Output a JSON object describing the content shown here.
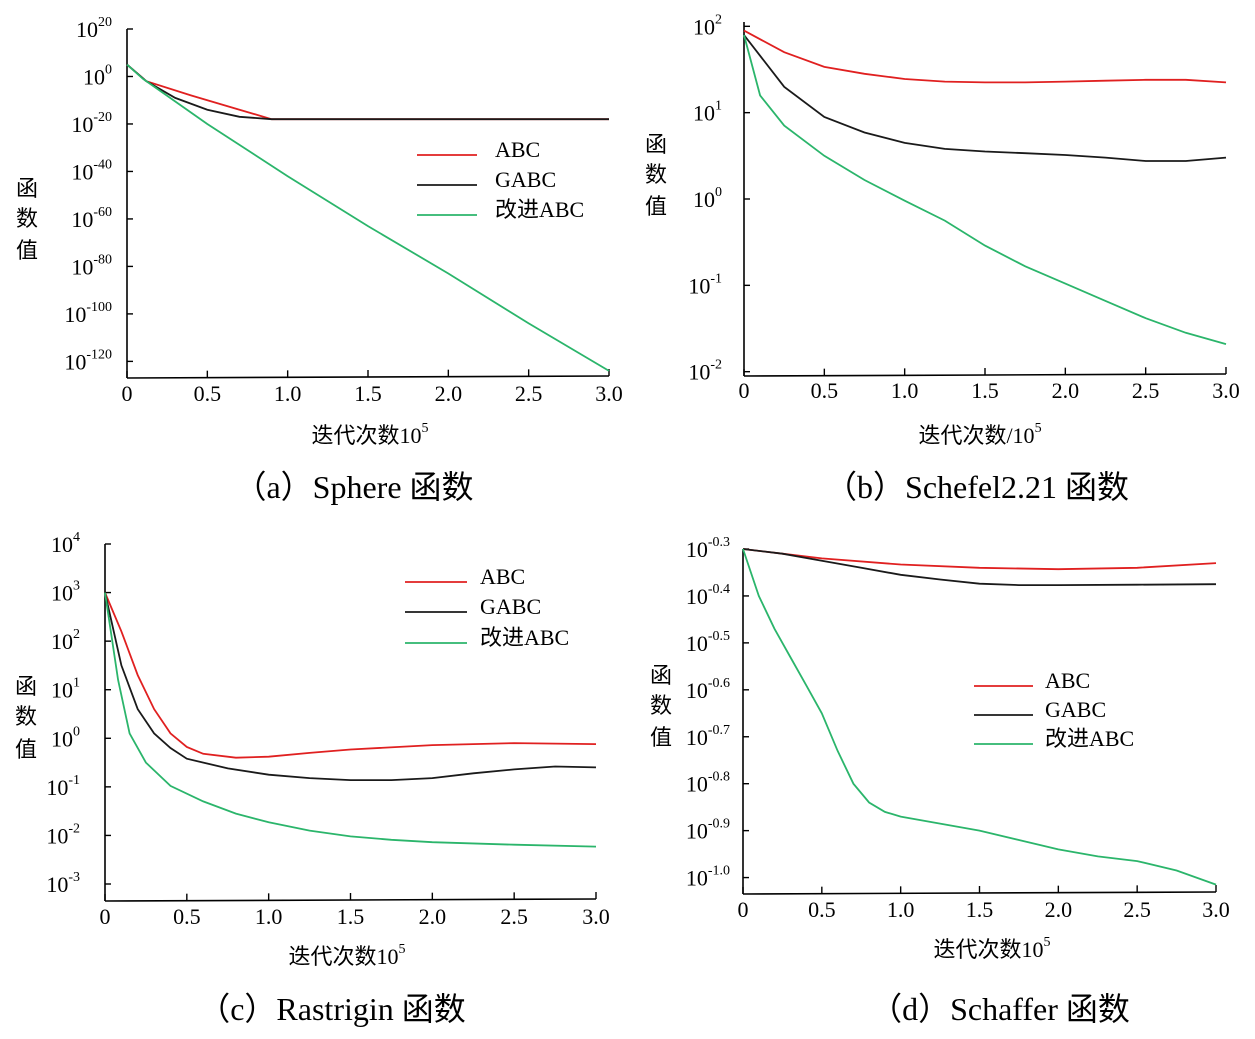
{
  "colors": {
    "ABC": "#e02020",
    "GABC": "#1a1a1a",
    "improved_ABC": "#2bb56b"
  },
  "chart_data": [
    {
      "type": "line",
      "caption": "（a）Sphere 函数",
      "xlabel": "迭代次数10",
      "xlabel_sup": "5",
      "ylabel": "函数值",
      "y_scale": "log",
      "x_ticks": [
        0,
        0.5,
        1.0,
        1.5,
        2.0,
        2.5,
        3.0
      ],
      "x_tick_labels": [
        "0",
        "0.5",
        "1.0",
        "1.5",
        "2.0",
        "2.5",
        "3.0"
      ],
      "y_ticks": [
        20,
        0,
        -20,
        -40,
        -60,
        -80,
        -100,
        -120
      ],
      "y_tick_labels": [
        {
          "base": "10",
          "exp": "20"
        },
        {
          "base": "10",
          "exp": "0"
        },
        {
          "base": "10",
          "exp": "-20"
        },
        {
          "base": "10",
          "exp": "-40"
        },
        {
          "base": "10",
          "exp": "-60"
        },
        {
          "base": "10",
          "exp": "-80"
        },
        {
          "base": "10",
          "exp": "-100"
        },
        {
          "base": "10",
          "exp": "-120"
        }
      ],
      "xlim": [
        0,
        3.0
      ],
      "ylim_log10": [
        -127,
        20
      ],
      "legend_position": "center-right",
      "series": [
        {
          "name": "ABC",
          "color_key": "ABC",
          "points": [
            [
              0,
              5
            ],
            [
              0.12,
              -2
            ],
            [
              0.4,
              -8
            ],
            [
              0.7,
              -14
            ],
            [
              0.9,
              -18
            ],
            [
              1.4,
              -18
            ],
            [
              2.0,
              -18
            ],
            [
              2.5,
              -18
            ],
            [
              3.0,
              -18
            ]
          ]
        },
        {
          "name": "GABC",
          "color_key": "GABC",
          "points": [
            [
              0,
              5
            ],
            [
              0.12,
              -2
            ],
            [
              0.3,
              -9
            ],
            [
              0.5,
              -14
            ],
            [
              0.7,
              -17
            ],
            [
              0.9,
              -18
            ],
            [
              1.4,
              -18
            ],
            [
              2.0,
              -18
            ],
            [
              2.5,
              -18
            ],
            [
              3.0,
              -18
            ]
          ]
        },
        {
          "name": "改进ABC",
          "color_key": "improved_ABC",
          "points": [
            [
              0,
              5
            ],
            [
              0.1,
              -1
            ],
            [
              0.5,
              -20
            ],
            [
              1.0,
              -42
            ],
            [
              1.5,
              -63
            ],
            [
              2.0,
              -83
            ],
            [
              2.5,
              -104
            ],
            [
              3.0,
              -124
            ]
          ]
        }
      ]
    },
    {
      "type": "line",
      "caption": "（b）Schefel2.21 函数",
      "xlabel": "迭代次数/10",
      "xlabel_sup": "5",
      "ylabel": "函数值",
      "y_scale": "log",
      "x_ticks": [
        0,
        0.5,
        1.0,
        1.5,
        2.0,
        2.5,
        3.0
      ],
      "x_tick_labels": [
        "0",
        "0.5",
        "1.0",
        "1.5",
        "2.0",
        "2.5",
        "3.0"
      ],
      "y_ticks": [
        2,
        1,
        0,
        -1,
        -2
      ],
      "y_tick_labels": [
        {
          "base": "10",
          "exp": "2"
        },
        {
          "base": "10",
          "exp": "1"
        },
        {
          "base": "10",
          "exp": "0"
        },
        {
          "base": "10",
          "exp": "-1"
        },
        {
          "base": "10",
          "exp": "-2"
        }
      ],
      "xlim": [
        0,
        3.0
      ],
      "ylim_log10": [
        -2.05,
        2.05
      ],
      "series": [
        {
          "name": "ABC",
          "color_key": "ABC",
          "points": [
            [
              0,
              1.95
            ],
            [
              0.25,
              1.7
            ],
            [
              0.5,
              1.53
            ],
            [
              0.75,
              1.45
            ],
            [
              1.0,
              1.39
            ],
            [
              1.25,
              1.36
            ],
            [
              1.5,
              1.35
            ],
            [
              1.75,
              1.35
            ],
            [
              2.0,
              1.36
            ],
            [
              2.25,
              1.37
            ],
            [
              2.5,
              1.38
            ],
            [
              2.75,
              1.38
            ],
            [
              3.0,
              1.35
            ]
          ]
        },
        {
          "name": "GABC",
          "color_key": "GABC",
          "points": [
            [
              0,
              1.9
            ],
            [
              0.25,
              1.3
            ],
            [
              0.5,
              0.95
            ],
            [
              0.75,
              0.77
            ],
            [
              1.0,
              0.65
            ],
            [
              1.25,
              0.58
            ],
            [
              1.5,
              0.55
            ],
            [
              1.75,
              0.53
            ],
            [
              2.0,
              0.51
            ],
            [
              2.25,
              0.48
            ],
            [
              2.5,
              0.44
            ],
            [
              2.75,
              0.44
            ],
            [
              3.0,
              0.48
            ]
          ]
        },
        {
          "name": "改进ABC",
          "color_key": "improved_ABC",
          "points": [
            [
              0,
              1.9
            ],
            [
              0.1,
              1.2
            ],
            [
              0.25,
              0.85
            ],
            [
              0.5,
              0.5
            ],
            [
              0.75,
              0.22
            ],
            [
              1.0,
              -0.02
            ],
            [
              1.25,
              -0.25
            ],
            [
              1.5,
              -0.54
            ],
            [
              1.75,
              -0.78
            ],
            [
              2.0,
              -0.98
            ],
            [
              2.25,
              -1.18
            ],
            [
              2.5,
              -1.38
            ],
            [
              2.75,
              -1.55
            ],
            [
              3.0,
              -1.68
            ]
          ]
        }
      ]
    },
    {
      "type": "line",
      "caption": "（c）Rastrigin 函数",
      "xlabel": "迭代次数10",
      "xlabel_sup": "5",
      "ylabel": "函数值",
      "y_scale": "log",
      "x_ticks": [
        0,
        0.5,
        1.0,
        1.5,
        2.0,
        2.5,
        3.0
      ],
      "x_tick_labels": [
        "0",
        "0.5",
        "1.0",
        "1.5",
        "2.0",
        "2.5",
        "3.0"
      ],
      "y_ticks": [
        4,
        3,
        2,
        1,
        0,
        -1,
        -2,
        -3
      ],
      "y_tick_labels": [
        {
          "base": "10",
          "exp": "4"
        },
        {
          "base": "10",
          "exp": "3"
        },
        {
          "base": "10",
          "exp": "2"
        },
        {
          "base": "10",
          "exp": "1"
        },
        {
          "base": "10",
          "exp": "0"
        },
        {
          "base": "10",
          "exp": "-1"
        },
        {
          "base": "10",
          "exp": "-2"
        },
        {
          "base": "10",
          "exp": "-3"
        }
      ],
      "xlim": [
        0,
        3.0
      ],
      "ylim_log10": [
        -3.35,
        4
      ],
      "legend_position": "top-right",
      "series": [
        {
          "name": "ABC",
          "color_key": "ABC",
          "points": [
            [
              0,
              3.0
            ],
            [
              0.1,
              2.2
            ],
            [
              0.2,
              1.3
            ],
            [
              0.3,
              0.6
            ],
            [
              0.4,
              0.1
            ],
            [
              0.5,
              -0.18
            ],
            [
              0.6,
              -0.32
            ],
            [
              0.8,
              -0.4
            ],
            [
              1.0,
              -0.38
            ],
            [
              1.25,
              -0.3
            ],
            [
              1.5,
              -0.23
            ],
            [
              2.0,
              -0.14
            ],
            [
              2.5,
              -0.1
            ],
            [
              3.0,
              -0.12
            ]
          ]
        },
        {
          "name": "GABC",
          "color_key": "GABC",
          "points": [
            [
              0,
              3.0
            ],
            [
              0.1,
              1.5
            ],
            [
              0.2,
              0.6
            ],
            [
              0.3,
              0.1
            ],
            [
              0.4,
              -0.2
            ],
            [
              0.5,
              -0.42
            ],
            [
              0.75,
              -0.62
            ],
            [
              1.0,
              -0.75
            ],
            [
              1.25,
              -0.82
            ],
            [
              1.5,
              -0.86
            ],
            [
              1.75,
              -0.86
            ],
            [
              2.0,
              -0.82
            ],
            [
              2.25,
              -0.72
            ],
            [
              2.5,
              -0.64
            ],
            [
              2.75,
              -0.58
            ],
            [
              3.0,
              -0.6
            ]
          ]
        },
        {
          "name": "改进ABC",
          "color_key": "improved_ABC",
          "points": [
            [
              0,
              3.0
            ],
            [
              0.08,
              1.2
            ],
            [
              0.15,
              0.1
            ],
            [
              0.25,
              -0.5
            ],
            [
              0.4,
              -0.98
            ],
            [
              0.6,
              -1.3
            ],
            [
              0.8,
              -1.55
            ],
            [
              1.0,
              -1.73
            ],
            [
              1.25,
              -1.9
            ],
            [
              1.5,
              -2.02
            ],
            [
              1.75,
              -2.09
            ],
            [
              2.0,
              -2.14
            ],
            [
              2.5,
              -2.19
            ],
            [
              3.0,
              -2.23
            ]
          ]
        }
      ]
    },
    {
      "type": "line",
      "caption": "（d）Schaffer 函数",
      "xlabel": "迭代次数10",
      "xlabel_sup": "5",
      "ylabel": "函数值",
      "y_scale": "log",
      "x_ticks": [
        0,
        0.5,
        1.0,
        1.5,
        2.0,
        2.5,
        3.0
      ],
      "x_tick_labels": [
        "0",
        "0.5",
        "1.0",
        "1.5",
        "2.0",
        "2.5",
        "3.0"
      ],
      "y_ticks": [
        -0.3,
        -0.4,
        -0.5,
        -0.6,
        -0.7,
        -0.8,
        -0.9,
        -1.0
      ],
      "y_tick_labels": [
        {
          "base": "10",
          "exp": "-0.3"
        },
        {
          "base": "10",
          "exp": "-0.4"
        },
        {
          "base": "10",
          "exp": "-0.5"
        },
        {
          "base": "10",
          "exp": "-0.6"
        },
        {
          "base": "10",
          "exp": "-0.7"
        },
        {
          "base": "10",
          "exp": "-0.8"
        },
        {
          "base": "10",
          "exp": "-0.9"
        },
        {
          "base": "10",
          "exp": "-1.0"
        }
      ],
      "xlim": [
        0,
        3.0
      ],
      "ylim_log10": [
        -1.035,
        -0.3
      ],
      "legend_position": "center-right",
      "series": [
        {
          "name": "ABC",
          "color_key": "ABC",
          "points": [
            [
              0,
              -0.3
            ],
            [
              0.25,
              -0.31
            ],
            [
              0.5,
              -0.32
            ],
            [
              1.0,
              -0.333
            ],
            [
              1.5,
              -0.34
            ],
            [
              2.0,
              -0.343
            ],
            [
              2.5,
              -0.34
            ],
            [
              3.0,
              -0.33
            ]
          ]
        },
        {
          "name": "GABC",
          "color_key": "GABC",
          "points": [
            [
              0,
              -0.3
            ],
            [
              0.25,
              -0.31
            ],
            [
              0.5,
              -0.325
            ],
            [
              0.75,
              -0.34
            ],
            [
              1.0,
              -0.355
            ],
            [
              1.25,
              -0.365
            ],
            [
              1.5,
              -0.374
            ],
            [
              1.75,
              -0.377
            ],
            [
              2.0,
              -0.377
            ],
            [
              2.5,
              -0.376
            ],
            [
              3.0,
              -0.375
            ]
          ]
        },
        {
          "name": "改进ABC",
          "color_key": "improved_ABC",
          "points": [
            [
              0,
              -0.3
            ],
            [
              0.1,
              -0.4
            ],
            [
              0.2,
              -0.47
            ],
            [
              0.3,
              -0.53
            ],
            [
              0.4,
              -0.59
            ],
            [
              0.5,
              -0.65
            ],
            [
              0.6,
              -0.73
            ],
            [
              0.7,
              -0.8
            ],
            [
              0.8,
              -0.84
            ],
            [
              0.9,
              -0.86
            ],
            [
              1.0,
              -0.87
            ],
            [
              1.25,
              -0.885
            ],
            [
              1.5,
              -0.9
            ],
            [
              1.75,
              -0.92
            ],
            [
              2.0,
              -0.94
            ],
            [
              2.25,
              -0.955
            ],
            [
              2.5,
              -0.965
            ],
            [
              2.75,
              -0.985
            ],
            [
              3.0,
              -1.015
            ]
          ]
        }
      ]
    }
  ]
}
